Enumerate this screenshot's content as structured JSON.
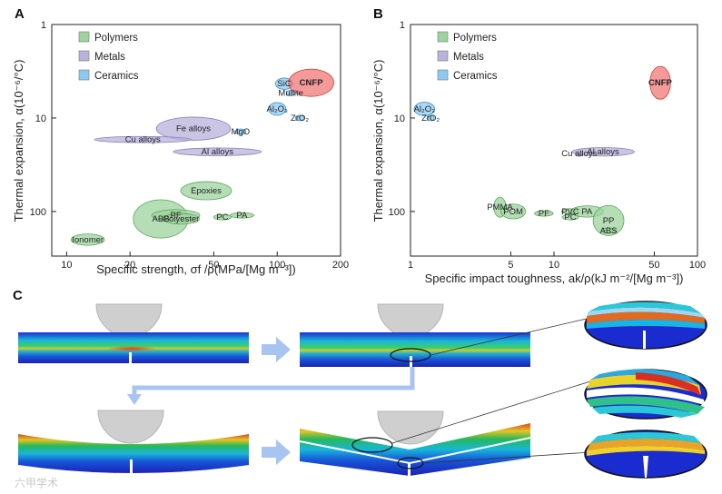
{
  "panel_c_label": "C",
  "watermark": "六甲学术",
  "colors": {
    "polymers": "#9ed39e",
    "metals": "#b8b2dc",
    "ceramics": "#8cc9f0",
    "cnfp": "#f07a78",
    "arrow": "#a8c4f2"
  },
  "chart_data": [
    {
      "panel": "A",
      "type": "scatter",
      "title": "",
      "xlabel": "Specific strength, σf /ρ(MPa/[Mg m⁻³])",
      "ylabel": "Thermal expansion, α(10⁻⁶/°C)",
      "xscale": "log",
      "yscale": "log-inverted",
      "xlim": [
        8.5,
        200
      ],
      "ylim": [
        1,
        300
      ],
      "xticks": [
        "10",
        "20",
        "50",
        "100",
        "200"
      ],
      "yticks": [
        "1",
        "10",
        "100"
      ],
      "legend": [
        "Polymers",
        "Metals",
        "Ceramics"
      ],
      "points": [
        {
          "label": "Ionomer",
          "cls": "polymers",
          "x": 12.6,
          "y": 200,
          "wx": 1.2,
          "wy": 1.15
        },
        {
          "label": "ABS",
          "cls": "polymers",
          "x": 28,
          "y": 120,
          "wx": 1.35,
          "wy": 1.6
        },
        {
          "label": "PF",
          "cls": "polymers",
          "x": 33,
          "y": 110,
          "wx": 1.3,
          "wy": 1.15
        },
        {
          "label": "Polyester",
          "cls": "polymers",
          "x": 35,
          "y": 120,
          "wx": 1.22,
          "wy": 1.14
        },
        {
          "label": "Epoxies",
          "cls": "polymers",
          "x": 46,
          "y": 60,
          "wx": 1.32,
          "wy": 1.25
        },
        {
          "label": "PC",
          "cls": "polymers",
          "x": 55,
          "y": 115,
          "wx": 1.1,
          "wy": 1.07
        },
        {
          "label": "PA",
          "cls": "polymers",
          "x": 68,
          "y": 110,
          "wx": 1.14,
          "wy": 1.06
        },
        {
          "label": "Fe alloys",
          "cls": "metals",
          "x": 40,
          "y": 13,
          "wx": 1.5,
          "wy": 1.33
        },
        {
          "label": "Cu alloys",
          "cls": "metals",
          "x": 23,
          "y": 17,
          "wx": 1.7,
          "wy": 1.08
        },
        {
          "label": "Al alloys",
          "cls": "metals",
          "x": 52,
          "y": 23,
          "wx": 1.62,
          "wy": 1.1
        },
        {
          "label": "MgO",
          "cls": "ceramics",
          "x": 67,
          "y": 14,
          "wx": 1.06,
          "wy": 1.06
        },
        {
          "label": "Al₂O₃",
          "cls": "ceramics",
          "x": 100,
          "y": 8,
          "wx": 1.1,
          "wy": 1.17
        },
        {
          "label": "SiC",
          "cls": "ceramics",
          "x": 108,
          "y": 4.3,
          "wx": 1.1,
          "wy": 1.15
        },
        {
          "label": "Mullite",
          "cls": "ceramics",
          "x": 116,
          "y": 5.4,
          "wx": 1.05,
          "wy": 1.05
        },
        {
          "label": "ZrO₂",
          "cls": "ceramics",
          "x": 128,
          "y": 10,
          "wx": 1.05,
          "wy": 1.05
        },
        {
          "label": "CNFP",
          "cls": "cnfp",
          "x": 145,
          "y": 4.2,
          "wx": 1.28,
          "wy": 1.4
        }
      ]
    },
    {
      "panel": "B",
      "type": "scatter",
      "title": "",
      "xlabel": "Specific impact toughness, ak/ρ(kJ m⁻²/[Mg m⁻³])",
      "ylabel": "Thermal expansion, α(10⁻⁶/°C)",
      "xscale": "log",
      "yscale": "log-inverted",
      "xlim": [
        1,
        100
      ],
      "ylim": [
        1,
        300
      ],
      "xticks": [
        "1",
        "5",
        "10",
        "50",
        "100"
      ],
      "yticks": [
        "1",
        "10",
        "100"
      ],
      "legend": [
        "Polymers",
        "Metals",
        "Ceramics"
      ],
      "points": [
        {
          "label": "PMMA",
          "cls": "polymers",
          "x": 4.2,
          "y": 90,
          "wx": 1.1,
          "wy": 1.28
        },
        {
          "label": "POM",
          "cls": "polymers",
          "x": 5.2,
          "y": 100,
          "wx": 1.22,
          "wy": 1.2
        },
        {
          "label": "PF",
          "cls": "polymers",
          "x": 8.5,
          "y": 105,
          "wx": 1.16,
          "wy": 1.06
        },
        {
          "label": "PVC",
          "cls": "polymers",
          "x": 13,
          "y": 100,
          "wx": 1.15,
          "wy": 1.06
        },
        {
          "label": "PC",
          "cls": "polymers",
          "x": 13,
          "y": 115,
          "wx": 1.14,
          "wy": 1.07
        },
        {
          "label": "PA",
          "cls": "polymers",
          "x": 17,
          "y": 100,
          "wx": 1.3,
          "wy": 1.15
        },
        {
          "label": "PP",
          "cls": "polymers",
          "x": 24,
          "y": 125,
          "wx": 1.28,
          "wy": 1.45
        },
        {
          "label": "ABS",
          "cls": "polymers",
          "x": 24,
          "y": 160,
          "wx": 1.12,
          "wy": 1.06
        },
        {
          "label": "Cu alloys",
          "cls": "metals",
          "x": 15,
          "y": 24,
          "wx": 1.07,
          "wy": 1.05
        },
        {
          "label": "Al alloys",
          "cls": "metals",
          "x": 22,
          "y": 23,
          "wx": 1.65,
          "wy": 1.11
        },
        {
          "label": "Al₂O₃",
          "cls": "ceramics",
          "x": 1.25,
          "y": 8,
          "wx": 1.18,
          "wy": 1.18
        },
        {
          "label": "ZrO₂",
          "cls": "ceramics",
          "x": 1.38,
          "y": 10,
          "wx": 1.05,
          "wy": 1.05
        },
        {
          "label": "CNFP",
          "cls": "cnfp",
          "x": 55,
          "y": 4.2,
          "wx": 1.18,
          "wy": 1.5
        }
      ]
    }
  ]
}
